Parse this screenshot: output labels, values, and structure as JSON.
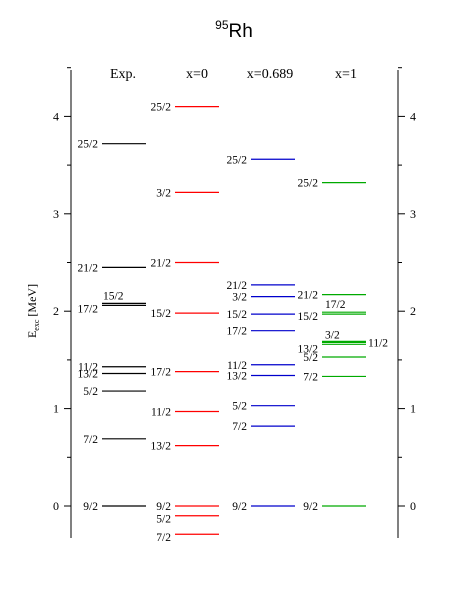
{
  "chart_data": {
    "type": "level-scheme",
    "title": {
      "superscript": "95",
      "base": "Rh"
    },
    "ylabel": {
      "base": "E",
      "sub": "exc",
      "rest": " [MeV]"
    },
    "ylim": [
      -0.3,
      4.5
    ],
    "yticks": [
      0,
      1,
      2,
      3,
      4
    ],
    "ytick_labels": [
      "0",
      "1",
      "2",
      "3",
      "4"
    ],
    "columns": [
      {
        "name": "Exp.",
        "color": "#000000",
        "levels": [
          {
            "spin": "9/2",
            "energy": 0.0
          },
          {
            "spin": "7/2",
            "energy": 0.69
          },
          {
            "spin": "5/2",
            "energy": 1.18
          },
          {
            "spin": "13/2",
            "energy": 1.36
          },
          {
            "spin": "11/2",
            "energy": 1.43
          },
          {
            "spin": "17/2",
            "energy": 2.06
          },
          {
            "spin": "15/2",
            "energy": 2.08
          },
          {
            "spin": "21/2",
            "energy": 2.45
          },
          {
            "spin": "25/2",
            "energy": 3.72
          }
        ]
      },
      {
        "name": "x=0",
        "color": "#ff0000",
        "levels": [
          {
            "spin": "7/2",
            "energy": -0.29
          },
          {
            "spin": "5/2",
            "energy": -0.1
          },
          {
            "spin": "9/2",
            "energy": 0.0
          },
          {
            "spin": "13/2",
            "energy": 0.62
          },
          {
            "spin": "11/2",
            "energy": 0.97
          },
          {
            "spin": "17/2",
            "energy": 1.38
          },
          {
            "spin": "15/2",
            "energy": 1.98
          },
          {
            "spin": "21/2",
            "energy": 2.5
          },
          {
            "spin": "3/2",
            "energy": 3.22
          },
          {
            "spin": "25/2",
            "energy": 4.1
          }
        ]
      },
      {
        "name": "x=0.689",
        "color": "#0000cc",
        "levels": [
          {
            "spin": "9/2",
            "energy": 0.0
          },
          {
            "spin": "7/2",
            "energy": 0.82
          },
          {
            "spin": "5/2",
            "energy": 1.03
          },
          {
            "spin": "13/2",
            "energy": 1.34
          },
          {
            "spin": "11/2",
            "energy": 1.45
          },
          {
            "spin": "17/2",
            "energy": 1.8
          },
          {
            "spin": "15/2",
            "energy": 1.97
          },
          {
            "spin": "3/2",
            "energy": 2.15
          },
          {
            "spin": "21/2",
            "energy": 2.27
          },
          {
            "spin": "25/2",
            "energy": 3.56
          }
        ]
      },
      {
        "name": "x=1",
        "color": "#00aa00",
        "levels": [
          {
            "spin": "9/2",
            "energy": 0.0
          },
          {
            "spin": "7/2",
            "energy": 1.33
          },
          {
            "spin": "5/2",
            "energy": 1.53
          },
          {
            "spin": "13/2",
            "energy": 1.66
          },
          {
            "spin": "3/2",
            "energy": 1.69
          },
          {
            "spin": "11/2",
            "energy": 1.68
          },
          {
            "spin": "15/2",
            "energy": 1.97
          },
          {
            "spin": "17/2",
            "energy": 1.99
          },
          {
            "spin": "21/2",
            "energy": 2.17
          },
          {
            "spin": "25/2",
            "energy": 3.32
          }
        ]
      }
    ]
  }
}
